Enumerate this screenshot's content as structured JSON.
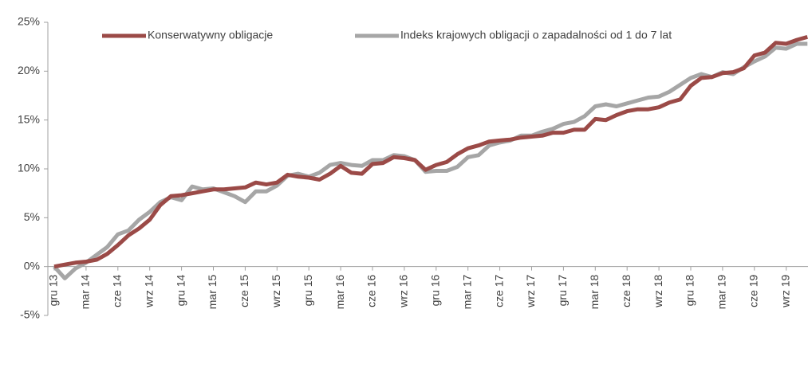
{
  "chart_data": {
    "type": "line",
    "categories": [
      "gru 13",
      null,
      null,
      "mar 14",
      null,
      null,
      "cze 14",
      null,
      null,
      "wrz 14",
      null,
      null,
      "gru 14",
      null,
      null,
      "mar 15",
      null,
      null,
      "cze 15",
      null,
      null,
      "wrz 15",
      null,
      null,
      "gru 15",
      null,
      null,
      "mar 16",
      null,
      null,
      "cze 16",
      null,
      null,
      "wrz 16",
      null,
      null,
      "gru 16",
      null,
      null,
      "mar 17",
      null,
      null,
      "cze 17",
      null,
      null,
      "wrz 17",
      null,
      null,
      "gru 17",
      null,
      null,
      "mar 18",
      null,
      null,
      "cze 18",
      null,
      null,
      "wrz 18",
      null,
      null,
      "gru 18",
      null,
      null,
      "mar 19",
      null,
      null,
      "cze 19",
      null,
      null,
      "wrz 19",
      null,
      null
    ],
    "series": [
      {
        "name": "Konserwatywny obligacje",
        "color": "#9b4a47",
        "values": [
          0,
          0.2,
          0.4,
          0.5,
          0.7,
          1.3,
          2.2,
          3.2,
          3.9,
          4.8,
          6.3,
          7.2,
          7.3,
          7.5,
          7.7,
          7.9,
          7.9,
          8.0,
          8.1,
          8.6,
          8.4,
          8.6,
          9.4,
          9.2,
          9.1,
          8.9,
          9.5,
          10.3,
          9.6,
          9.5,
          10.5,
          10.6,
          11.2,
          11.1,
          10.9,
          9.9,
          10.4,
          10.7,
          11.5,
          12.1,
          12.4,
          12.8,
          12.9,
          13.0,
          13.2,
          13.3,
          13.4,
          13.7,
          13.7,
          14.0,
          14.0,
          15.1,
          15.0,
          15.5,
          15.9,
          16.1,
          16.1,
          16.3,
          16.8,
          17.1,
          18.5,
          19.3,
          19.4,
          19.8,
          19.9,
          20.3,
          21.6,
          21.9,
          22.9,
          22.8,
          23.2,
          23.5
        ]
      },
      {
        "name": "Indeks krajowych obligacji o zapadalności od 1 do 7 lat",
        "color": "#a6a6a6",
        "values": [
          0,
          -1.2,
          -0.2,
          0.4,
          1.2,
          2.0,
          3.3,
          3.7,
          4.8,
          5.6,
          6.6,
          7.1,
          6.8,
          8.2,
          7.9,
          8.0,
          7.6,
          7.2,
          6.6,
          7.7,
          7.7,
          8.3,
          9.3,
          9.5,
          9.2,
          9.6,
          10.4,
          10.6,
          10.4,
          10.3,
          10.9,
          10.9,
          11.4,
          11.3,
          10.9,
          9.7,
          9.8,
          9.8,
          10.2,
          11.2,
          11.4,
          12.4,
          12.7,
          12.9,
          13.4,
          13.4,
          13.8,
          14.1,
          14.6,
          14.8,
          15.4,
          16.4,
          16.6,
          16.4,
          16.7,
          17.0,
          17.3,
          17.4,
          17.9,
          18.6,
          19.3,
          19.7,
          19.4,
          19.9,
          19.7,
          20.4,
          21.0,
          21.5,
          22.4,
          22.3,
          22.8,
          22.8
        ]
      }
    ],
    "ylim": [
      -5,
      25
    ],
    "yticks": [
      {
        "value": -5,
        "label": "-5%"
      },
      {
        "value": 0,
        "label": "0%"
      },
      {
        "value": 5,
        "label": "5%"
      },
      {
        "value": 10,
        "label": "10%"
      },
      {
        "value": 15,
        "label": "15%"
      },
      {
        "value": 20,
        "label": "20%"
      },
      {
        "value": 25,
        "label": "25%"
      }
    ],
    "grid": false,
    "legend": "top"
  }
}
